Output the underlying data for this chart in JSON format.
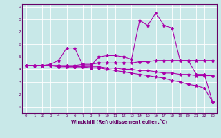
{
  "xlabel": "Windchill (Refroidissement éolien,°C)",
  "bg_color": "#c8e8e8",
  "line_color": "#aa00aa",
  "grid_color": "#ffffff",
  "border_color": "#660066",
  "xlim": [
    -0.5,
    23.5
  ],
  "ylim": [
    0.5,
    9.2
  ],
  "xticks": [
    0,
    1,
    2,
    3,
    4,
    5,
    6,
    7,
    8,
    9,
    10,
    11,
    12,
    13,
    14,
    15,
    16,
    17,
    18,
    19,
    20,
    21,
    22,
    23
  ],
  "yticks": [
    1,
    2,
    3,
    4,
    5,
    6,
    7,
    8,
    9
  ],
  "series": [
    [
      4.3,
      4.3,
      4.3,
      4.4,
      4.7,
      5.7,
      5.7,
      4.3,
      4.3,
      5.0,
      5.1,
      5.1,
      5.0,
      4.8,
      7.9,
      7.5,
      8.5,
      7.5,
      7.3,
      4.7,
      4.7,
      3.6,
      3.6,
      1.4
    ],
    [
      4.3,
      4.3,
      4.3,
      4.3,
      4.3,
      4.3,
      4.3,
      4.4,
      4.4,
      4.5,
      4.5,
      4.5,
      4.5,
      4.5,
      4.6,
      4.6,
      4.7,
      4.7,
      4.7,
      4.7,
      4.7,
      4.7,
      4.7,
      4.7
    ],
    [
      4.3,
      4.3,
      4.3,
      4.3,
      4.2,
      4.2,
      4.2,
      4.2,
      4.2,
      4.2,
      4.1,
      4.1,
      4.0,
      4.0,
      3.9,
      3.9,
      3.8,
      3.7,
      3.7,
      3.6,
      3.6,
      3.5,
      3.5,
      3.5
    ],
    [
      4.3,
      4.3,
      4.3,
      4.3,
      4.3,
      4.2,
      4.2,
      4.2,
      4.1,
      4.1,
      4.0,
      3.9,
      3.8,
      3.7,
      3.6,
      3.5,
      3.4,
      3.3,
      3.1,
      3.0,
      2.8,
      2.7,
      2.5,
      1.4
    ]
  ],
  "marker": "*",
  "markersize": 3,
  "linewidth": 0.8,
  "tick_fontsize": 4.0,
  "xlabel_fontsize": 4.8
}
